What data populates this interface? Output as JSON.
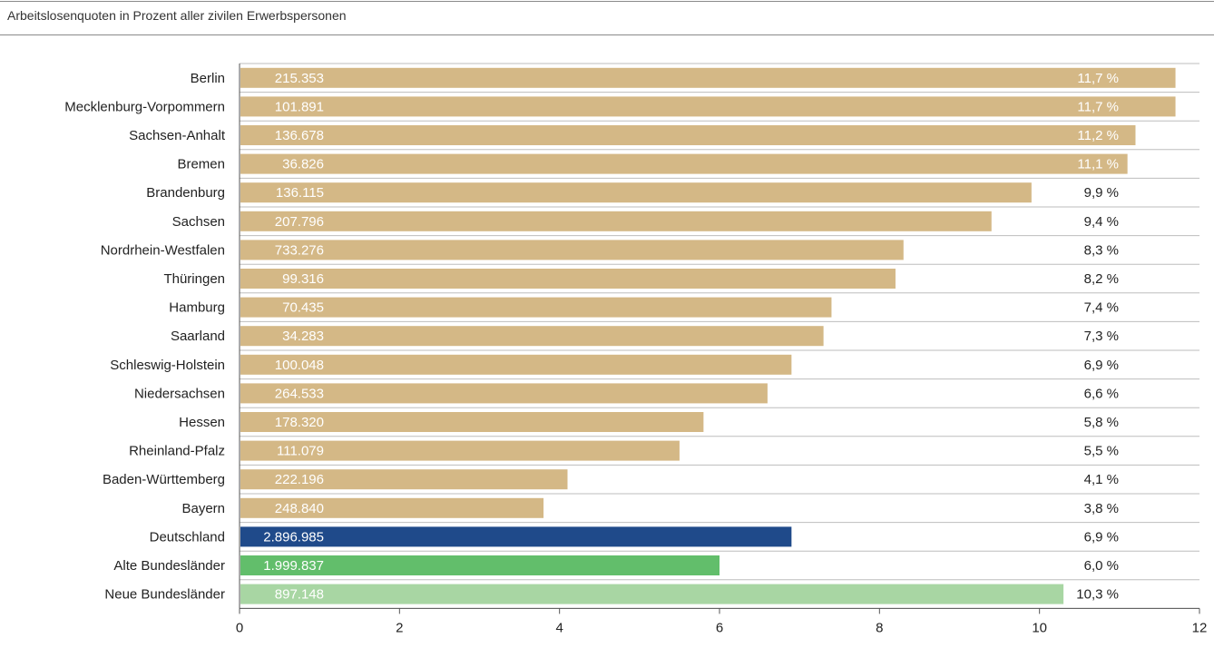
{
  "header": {
    "subtitle": "Arbeitslosenquoten in Prozent aller zivilen Erwerbspersonen"
  },
  "colors": {
    "land": "#d4b886",
    "deutschland": "#1f4a8a",
    "alte": "#62be6b",
    "neue": "#a8d6a3",
    "grid": "#bdbdbd",
    "axis": "#555555"
  },
  "chart_data": {
    "type": "bar",
    "orientation": "horizontal",
    "title": "",
    "xlabel": "",
    "ylabel": "",
    "xlim": [
      0,
      12
    ],
    "xticks": [
      0,
      2,
      4,
      6,
      8,
      10,
      12
    ],
    "grid": "horizontal separators",
    "categories": [
      "Berlin",
      "Mecklenburg-Vorpommern",
      "Sachsen-Anhalt",
      "Bremen",
      "Brandenburg",
      "Sachsen",
      "Nordrhein-Westfalen",
      "Thüringen",
      "Hamburg",
      "Saarland",
      "Schleswig-Holstein",
      "Niedersachsen",
      "Hessen",
      "Rheinland-Pfalz",
      "Baden-Württemberg",
      "Bayern",
      "Deutschland",
      "Alte Bundesländer",
      "Neue Bundesländer"
    ],
    "values": [
      11.7,
      11.7,
      11.2,
      11.1,
      9.9,
      9.4,
      8.3,
      8.2,
      7.4,
      7.3,
      6.9,
      6.6,
      5.8,
      5.5,
      4.1,
      3.8,
      6.9,
      6.0,
      10.3
    ],
    "value_labels": [
      "11,7 %",
      "11,7 %",
      "11,2 %",
      "11,1 %",
      "9,9 %",
      "9,4 %",
      "8,3 %",
      "8,2 %",
      "7,4 %",
      "7,3 %",
      "6,9 %",
      "6,6 %",
      "5,8 %",
      "5,5 %",
      "4,1 %",
      "3,8 %",
      "6,9 %",
      "6,0 %",
      "10,3 %"
    ],
    "counts": [
      "215.353",
      "101.891",
      "136.678",
      "36.826",
      "136.115",
      "207.796",
      "733.276",
      "99.316",
      "70.435",
      "34.283",
      "100.048",
      "264.533",
      "178.320",
      "111.079",
      "222.196",
      "248.840",
      "2.896.985",
      "1.999.837",
      "897.148"
    ],
    "bar_colors": [
      "land",
      "land",
      "land",
      "land",
      "land",
      "land",
      "land",
      "land",
      "land",
      "land",
      "land",
      "land",
      "land",
      "land",
      "land",
      "land",
      "deutschland",
      "alte",
      "neue"
    ]
  }
}
